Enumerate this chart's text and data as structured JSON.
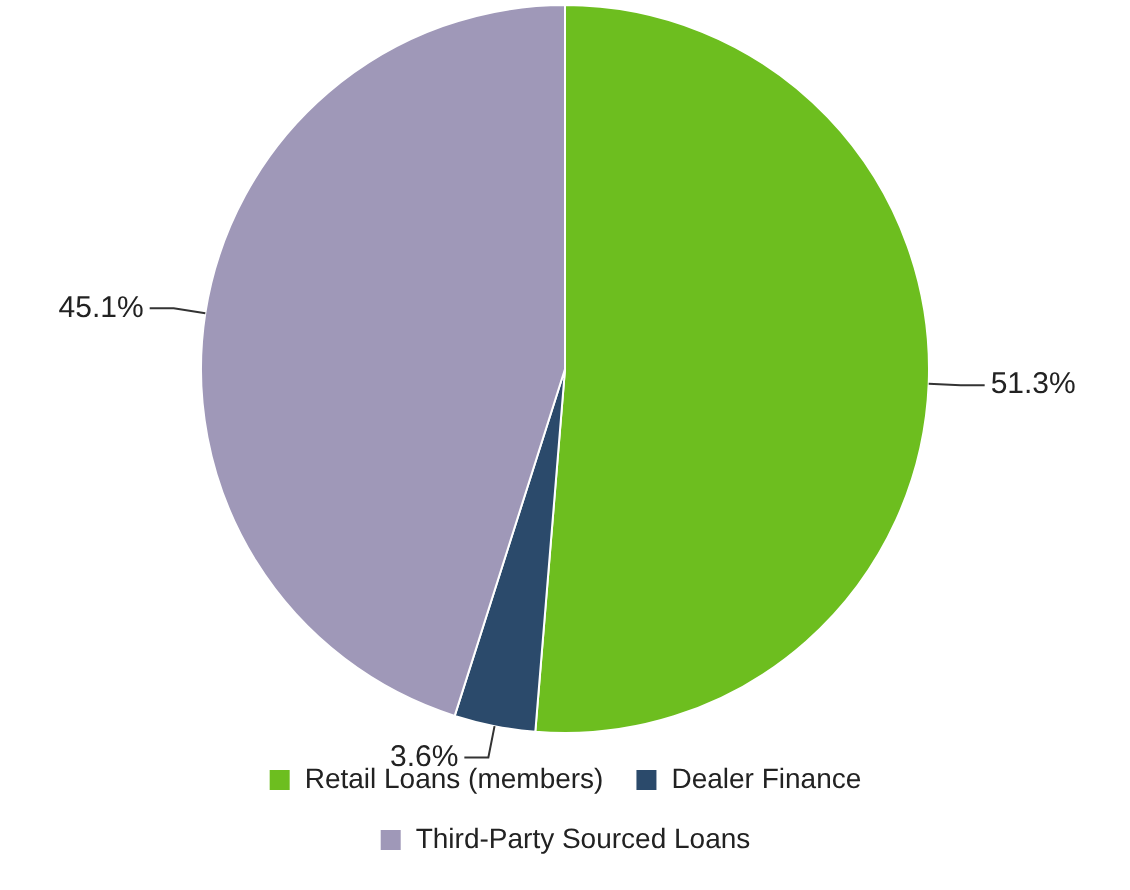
{
  "chart_data": {
    "type": "pie",
    "categories": [
      "Retail Loans (members)",
      "Dealer Finance",
      "Third-Party Sourced Loans"
    ],
    "values": [
      51.3,
      3.6,
      45.1
    ],
    "colors": [
      "#6dbe1f",
      "#2b4a6b",
      "#9f98b8"
    ],
    "value_labels": [
      "51.3%",
      "3.6%",
      "45.1%"
    ],
    "legend": "bottom"
  }
}
